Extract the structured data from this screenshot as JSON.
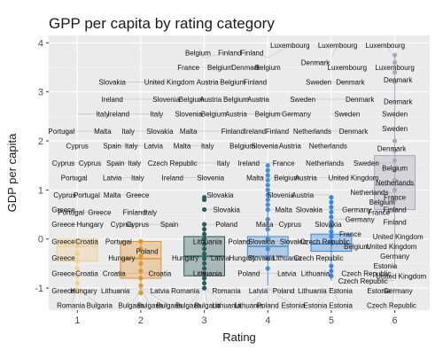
{
  "chart_data": {
    "type": "scatter",
    "title": "GPP per capita by rating category",
    "xlabel": "Rating",
    "ylabel": "GDP per capita",
    "xlim": [
      0.55,
      6.55
    ],
    "ylim": [
      -1.45,
      4.15
    ],
    "x_ticks": [
      "1",
      "2",
      "3",
      "4",
      "5",
      "6"
    ],
    "y_ticks": [
      "-1",
      "0",
      "1",
      "2",
      "3",
      "4"
    ],
    "grid": true,
    "colors": {
      "panel": "#ebebeb",
      "grid_major": "#ffffff",
      "grid_minor": "#f5f5f5",
      "rating_1": "#f3cf92",
      "rating_2": "#e0952f",
      "rating_3": "#2b5d5a",
      "rating_4": "#4a8ed1",
      "rating_5": "#3a86d8",
      "rating_6": "#a9a9b6",
      "connector": "#8a8a8a"
    },
    "boxes": [
      {
        "rating": 1,
        "q1": -0.45,
        "median": -0.15,
        "q3": 0.0,
        "lower": -1.05,
        "upper": 0.0
      },
      {
        "rating": 2,
        "q1": -0.8,
        "median": -0.4,
        "q3": -0.05,
        "lower": -1.1,
        "upper": 0.0
      },
      {
        "rating": 3,
        "q1": -0.75,
        "median": -0.35,
        "q3": 0.05,
        "lower": -1.05,
        "upper": 0.3
      },
      {
        "rating": 4,
        "q1": -0.35,
        "median": -0.15,
        "q3": 0.05,
        "lower": -0.95,
        "upper": 0.75
      },
      {
        "rating": 5,
        "q1": -0.25,
        "median": -0.1,
        "q3": 0.1,
        "lower": -0.85,
        "upper": 0.85
      },
      {
        "rating": 6,
        "q1": 0.6,
        "median": 1.1,
        "q3": 1.7,
        "lower": -0.6,
        "upper": 3.75
      }
    ],
    "points": [
      {
        "rating": 1,
        "values": [
          -0.05,
          -0.15,
          -0.3,
          -0.45,
          -0.6,
          -0.75,
          -0.9,
          -1.05
        ]
      },
      {
        "rating": 2,
        "values": [
          -0.05,
          -0.2,
          -0.35,
          -0.5,
          -0.65,
          -0.8,
          -0.95,
          -1.1
        ]
      },
      {
        "rating": 3,
        "values": [
          0.3,
          0.2,
          0.1,
          0.0,
          -0.1,
          -0.2,
          -0.3,
          -0.4,
          -0.5,
          -0.6,
          -0.7,
          -0.8,
          -0.9,
          -1.0,
          0.8,
          0.85,
          0.6
        ]
      },
      {
        "rating": 4,
        "values": [
          1.5,
          1.4,
          1.3,
          1.2,
          1.1,
          1.0,
          0.9,
          0.8,
          0.7,
          0.6,
          0.4,
          0.2,
          0.0,
          -0.2,
          -0.4,
          -0.6
        ]
      },
      {
        "rating": 5,
        "values": [
          0.85,
          0.75,
          0.65,
          0.55,
          0.45,
          0.35,
          0.25,
          0.15,
          0.05,
          -0.05,
          -0.55,
          -0.65,
          -0.75
        ]
      },
      {
        "rating": 6,
        "values": [
          3.75,
          3.6,
          3.4,
          3.2,
          2.0,
          1.8,
          1.6,
          1.4,
          1.2,
          1.0,
          0.8,
          0.6
        ]
      }
    ],
    "labels": [
      {
        "text": "Romania",
        "x": 0.9,
        "y": -1.35
      },
      {
        "text": "Bulgaria",
        "x": 1.35,
        "y": -1.35
      },
      {
        "text": "Bulgaria",
        "x": 1.85,
        "y": -1.35
      },
      {
        "text": "Bulgaria",
        "x": 2.15,
        "y": -1.35
      },
      {
        "text": "Bulgaria",
        "x": 2.45,
        "y": -1.35
      },
      {
        "text": "Bulgaria",
        "x": 2.75,
        "y": -1.35
      },
      {
        "text": "Bulgaria",
        "x": 3.05,
        "y": -1.35
      },
      {
        "text": "Lithuania",
        "x": 3.35,
        "y": -1.35
      },
      {
        "text": "Lithuania",
        "x": 3.7,
        "y": -1.35
      },
      {
        "text": "Poland",
        "x": 4.0,
        "y": -1.35
      },
      {
        "text": "Estonia",
        "x": 4.4,
        "y": -1.35
      },
      {
        "text": "Estonia",
        "x": 4.75,
        "y": -1.35
      },
      {
        "text": "Estonia",
        "x": 5.15,
        "y": -1.35
      },
      {
        "text": "Czech Republic",
        "x": 5.95,
        "y": -1.35
      },
      {
        "text": "Greece",
        "x": 0.78,
        "y": -1.05
      },
      {
        "text": "Hungary",
        "x": 1.1,
        "y": -1.05
      },
      {
        "text": "Lithuania",
        "x": 1.6,
        "y": -1.05
      },
      {
        "text": "Latvia",
        "x": 2.3,
        "y": -1.05
      },
      {
        "text": "Romania",
        "x": 2.7,
        "y": -1.05
      },
      {
        "text": "Romania",
        "x": 3.35,
        "y": -1.05
      },
      {
        "text": "Latvia",
        "x": 3.85,
        "y": -1.05
      },
      {
        "text": "Poland",
        "x": 4.25,
        "y": -1.05
      },
      {
        "text": "Lithuania",
        "x": 4.7,
        "y": -1.05
      },
      {
        "text": "Estonia",
        "x": 5.15,
        "y": -1.05
      },
      {
        "text": "Estonia",
        "x": 5.75,
        "y": -1.05
      },
      {
        "text": "Germany",
        "x": 6.05,
        "y": -1.05
      },
      {
        "text": "Greece",
        "x": 0.78,
        "y": -0.7
      },
      {
        "text": "Croatia",
        "x": 1.15,
        "y": -0.7
      },
      {
        "text": "Croatia",
        "x": 1.58,
        "y": -0.7
      },
      {
        "text": "Croatia",
        "x": 2.3,
        "y": -0.7
      },
      {
        "text": "Lithuania",
        "x": 3.05,
        "y": -0.7
      },
      {
        "text": "Poland",
        "x": 3.7,
        "y": -0.7
      },
      {
        "text": "Latvia",
        "x": 4.3,
        "y": -0.7
      },
      {
        "text": "Lithuania",
        "x": 4.75,
        "y": -0.7
      },
      {
        "text": "Czech Republic",
        "x": 5.55,
        "y": -0.7
      },
      {
        "text": "Czech Republic",
        "x": 5.5,
        "y": -0.85
      },
      {
        "text": "United Kingdom",
        "x": 6.1,
        "y": -0.75
      },
      {
        "text": "Greece",
        "x": 0.78,
        "y": -0.38
      },
      {
        "text": "Hungary",
        "x": 1.7,
        "y": -0.38
      },
      {
        "text": "Hungary",
        "x": 2.7,
        "y": -0.38
      },
      {
        "text": "Latvia",
        "x": 3.25,
        "y": -0.38
      },
      {
        "text": "Hungary",
        "x": 3.6,
        "y": -0.38
      },
      {
        "text": "Slovakia",
        "x": 3.9,
        "y": -0.38
      },
      {
        "text": "Lithuania",
        "x": 4.3,
        "y": -0.38
      },
      {
        "text": "Czech Republic",
        "x": 4.8,
        "y": -0.38
      },
      {
        "text": "Estonia",
        "x": 5.85,
        "y": -0.55
      },
      {
        "text": "Germany",
        "x": 6.0,
        "y": -0.35
      },
      {
        "text": "Greece",
        "x": 0.78,
        "y": -0.05
      },
      {
        "text": "Croatia",
        "x": 1.15,
        "y": -0.05
      },
      {
        "text": "Portugal",
        "x": 1.65,
        "y": -0.05
      },
      {
        "text": "Poland",
        "x": 2.1,
        "y": -0.25
      },
      {
        "text": "Lithuania",
        "x": 3.05,
        "y": -0.05
      },
      {
        "text": "Poland",
        "x": 3.55,
        "y": -0.05
      },
      {
        "text": "Slovakia",
        "x": 3.9,
        "y": -0.05
      },
      {
        "text": "Slovakia",
        "x": 4.4,
        "y": -0.05
      },
      {
        "text": "Czech Republic",
        "x": 4.9,
        "y": -0.05
      },
      {
        "text": "Belgium",
        "x": 5.4,
        "y": -0.15
      },
      {
        "text": "United Kingdom",
        "x": 5.95,
        "y": -0.15
      },
      {
        "text": "France",
        "x": 5.3,
        "y": 0.1
      },
      {
        "text": "United Kingdom",
        "x": 6.05,
        "y": 0.05
      },
      {
        "text": "Greece",
        "x": 0.78,
        "y": 0.6
      },
      {
        "text": "Hungary",
        "x": 1.2,
        "y": 0.3
      },
      {
        "text": "Cyprus",
        "x": 1.7,
        "y": 0.3
      },
      {
        "text": "Spain",
        "x": 2.45,
        "y": 0.3
      },
      {
        "text": "Poland",
        "x": 3.35,
        "y": 0.3
      },
      {
        "text": "Malta",
        "x": 3.95,
        "y": 0.3
      },
      {
        "text": "Cyprus",
        "x": 4.35,
        "y": 0.3
      },
      {
        "text": "Slovakia",
        "x": 4.95,
        "y": 0.3
      },
      {
        "text": "Germany",
        "x": 5.45,
        "y": 0.4
      },
      {
        "text": "Finland",
        "x": 6.0,
        "y": 0.35
      },
      {
        "text": "Greece",
        "x": 0.78,
        "y": 0.3
      },
      {
        "text": "Portugal",
        "x": 0.9,
        "y": 0.55
      },
      {
        "text": "Greece",
        "x": 1.35,
        "y": 0.55
      },
      {
        "text": "Cyprus",
        "x": 1.95,
        "y": 0.3
      },
      {
        "text": "Finland",
        "x": 1.9,
        "y": 0.55
      },
      {
        "text": "Italy",
        "x": 2.15,
        "y": 0.55
      },
      {
        "text": "Slovakia",
        "x": 3.35,
        "y": 0.6
      },
      {
        "text": "Malta",
        "x": 4.25,
        "y": 0.6
      },
      {
        "text": "Slovakia",
        "x": 4.65,
        "y": 0.6
      },
      {
        "text": "Germany",
        "x": 5.4,
        "y": 0.6
      },
      {
        "text": "France",
        "x": 5.75,
        "y": 0.55
      },
      {
        "text": "Finland",
        "x": 6.0,
        "y": 0.6
      },
      {
        "text": "Cyprus",
        "x": 0.8,
        "y": 0.9
      },
      {
        "text": "Portugal",
        "x": 1.15,
        "y": 0.9
      },
      {
        "text": "Malta",
        "x": 1.55,
        "y": 0.9
      },
      {
        "text": "Greece",
        "x": 1.95,
        "y": 0.9
      },
      {
        "text": "Slovakia",
        "x": 3.25,
        "y": 0.9
      },
      {
        "text": "Slovenia",
        "x": 4.2,
        "y": 0.9
      },
      {
        "text": "Austria",
        "x": 4.55,
        "y": 0.9
      },
      {
        "text": "Netherlands",
        "x": 5.6,
        "y": 0.95
      },
      {
        "text": "Belgium",
        "x": 5.8,
        "y": 0.75
      },
      {
        "text": "France",
        "x": 6.0,
        "y": 0.85
      },
      {
        "text": "Portugal",
        "x": 0.95,
        "y": 1.25
      },
      {
        "text": "Latvia",
        "x": 1.55,
        "y": 1.25
      },
      {
        "text": "Italy",
        "x": 1.95,
        "y": 1.25
      },
      {
        "text": "Ireland",
        "x": 2.5,
        "y": 1.25
      },
      {
        "text": "Slovenia",
        "x": 3.1,
        "y": 1.25
      },
      {
        "text": "Malta",
        "x": 3.8,
        "y": 1.25
      },
      {
        "text": "Belgium",
        "x": 4.3,
        "y": 1.25
      },
      {
        "text": "Austria",
        "x": 4.6,
        "y": 1.25
      },
      {
        "text": "United Kingdom",
        "x": 5.35,
        "y": 1.25
      },
      {
        "text": "Netherlands",
        "x": 6.0,
        "y": 1.15
      },
      {
        "text": "Cyprus",
        "x": 0.78,
        "y": 1.55
      },
      {
        "text": "Cyprus",
        "x": 1.2,
        "y": 1.55
      },
      {
        "text": "Spain",
        "x": 1.6,
        "y": 1.55
      },
      {
        "text": "Italy",
        "x": 1.9,
        "y": 1.55
      },
      {
        "text": "Czech Republic",
        "x": 2.5,
        "y": 1.55
      },
      {
        "text": "Italy",
        "x": 3.3,
        "y": 1.55
      },
      {
        "text": "Ireland",
        "x": 3.7,
        "y": 1.55
      },
      {
        "text": "France",
        "x": 4.25,
        "y": 1.55
      },
      {
        "text": "Netherlands",
        "x": 4.9,
        "y": 1.55
      },
      {
        "text": "Sweden",
        "x": 5.55,
        "y": 1.55
      },
      {
        "text": "Belgium",
        "x": 6.0,
        "y": 1.45
      },
      {
        "text": "Cyprus",
        "x": 1.0,
        "y": 1.9
      },
      {
        "text": "Spain",
        "x": 1.55,
        "y": 1.9
      },
      {
        "text": "Italy",
        "x": 1.85,
        "y": 1.9
      },
      {
        "text": "Latvia",
        "x": 2.2,
        "y": 1.9
      },
      {
        "text": "Malta",
        "x": 2.65,
        "y": 1.9
      },
      {
        "text": "Italy",
        "x": 3.05,
        "y": 1.9
      },
      {
        "text": "Belgium",
        "x": 3.6,
        "y": 1.9
      },
      {
        "text": "Slovenia",
        "x": 3.95,
        "y": 1.9
      },
      {
        "text": "Austria",
        "x": 4.35,
        "y": 1.9
      },
      {
        "text": "Netherlands",
        "x": 4.95,
        "y": 1.9
      },
      {
        "text": "Denmark",
        "x": 5.95,
        "y": 1.85
      },
      {
        "text": "Portugal",
        "x": 0.75,
        "y": 2.2
      },
      {
        "text": "Malta",
        "x": 1.4,
        "y": 2.2
      },
      {
        "text": "Italy",
        "x": 1.8,
        "y": 2.2
      },
      {
        "text": "Slovakia",
        "x": 2.3,
        "y": 2.2
      },
      {
        "text": "Malta",
        "x": 2.75,
        "y": 2.2
      },
      {
        "text": "Finland",
        "x": 3.45,
        "y": 2.2
      },
      {
        "text": "Ireland",
        "x": 3.8,
        "y": 2.2
      },
      {
        "text": "Finland",
        "x": 4.15,
        "y": 2.2
      },
      {
        "text": "Netherlands",
        "x": 4.7,
        "y": 2.2
      },
      {
        "text": "Denmark",
        "x": 5.35,
        "y": 2.2
      },
      {
        "text": "Sweden",
        "x": 6.0,
        "y": 2.25
      },
      {
        "text": "Italy",
        "x": 1.4,
        "y": 2.55
      },
      {
        "text": "Ireland",
        "x": 1.65,
        "y": 2.55
      },
      {
        "text": "Italy",
        "x": 2.25,
        "y": 2.55
      },
      {
        "text": "Slovenia",
        "x": 2.75,
        "y": 2.55
      },
      {
        "text": "Belgium",
        "x": 3.15,
        "y": 2.55
      },
      {
        "text": "Austria",
        "x": 3.5,
        "y": 2.55
      },
      {
        "text": "Belgium",
        "x": 4.0,
        "y": 2.55
      },
      {
        "text": "Germany",
        "x": 4.45,
        "y": 2.55
      },
      {
        "text": "Sweden",
        "x": 5.25,
        "y": 2.55
      },
      {
        "text": "Sweden",
        "x": 6.0,
        "y": 2.55
      },
      {
        "text": "Ireland",
        "x": 1.55,
        "y": 2.85
      },
      {
        "text": "Slovenia",
        "x": 2.4,
        "y": 2.85
      },
      {
        "text": "Belgium",
        "x": 2.8,
        "y": 2.85
      },
      {
        "text": "Austria",
        "x": 3.1,
        "y": 2.85
      },
      {
        "text": "Belgium",
        "x": 3.5,
        "y": 2.85
      },
      {
        "text": "Austria",
        "x": 3.85,
        "y": 2.85
      },
      {
        "text": "Sweden",
        "x": 4.55,
        "y": 2.85
      },
      {
        "text": "Denmark",
        "x": 5.45,
        "y": 2.85
      },
      {
        "text": "Denmark",
        "x": 6.05,
        "y": 2.8
      },
      {
        "text": "Slovakia",
        "x": 1.55,
        "y": 3.2
      },
      {
        "text": "United Kingdom",
        "x": 2.45,
        "y": 3.2
      },
      {
        "text": "Austria",
        "x": 3.05,
        "y": 3.2
      },
      {
        "text": "Belgium",
        "x": 3.45,
        "y": 3.2
      },
      {
        "text": "Finland",
        "x": 3.8,
        "y": 3.2
      },
      {
        "text": "Sweden",
        "x": 4.8,
        "y": 3.2
      },
      {
        "text": "Denmark",
        "x": 5.3,
        "y": 3.2
      },
      {
        "text": "Denmark",
        "x": 6.05,
        "y": 3.25
      },
      {
        "text": "France",
        "x": 2.75,
        "y": 3.5
      },
      {
        "text": "Belgium",
        "x": 3.25,
        "y": 3.5
      },
      {
        "text": "Denmark",
        "x": 3.65,
        "y": 3.5
      },
      {
        "text": "Belgium",
        "x": 4.0,
        "y": 3.5
      },
      {
        "text": "Denmark",
        "x": 4.75,
        "y": 3.6
      },
      {
        "text": "Luxembourg",
        "x": 5.25,
        "y": 3.5
      },
      {
        "text": "Luxembourg",
        "x": 6.0,
        "y": 3.5
      },
      {
        "text": "Belgium",
        "x": 2.9,
        "y": 3.8
      },
      {
        "text": "Finland",
        "x": 3.4,
        "y": 3.8
      },
      {
        "text": "Finland",
        "x": 3.75,
        "y": 3.8
      },
      {
        "text": "Luxembourg",
        "x": 4.35,
        "y": 3.95
      },
      {
        "text": "Luxembourg",
        "x": 5.1,
        "y": 3.95
      },
      {
        "text": "Luxembourg",
        "x": 5.85,
        "y": 3.95
      }
    ]
  }
}
